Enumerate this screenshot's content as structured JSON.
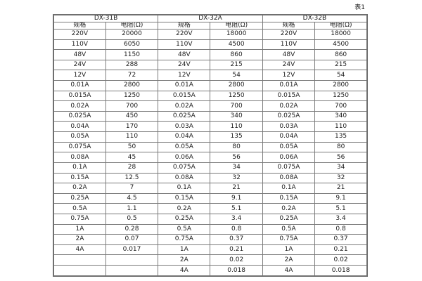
{
  "page": {
    "caption": "表1"
  },
  "colors": {
    "border": "#7a7a7a",
    "outer_border": "#6f6f6f",
    "text": "#1b1b1b",
    "background": "#ffffff"
  },
  "table": {
    "groups": [
      {
        "name": "DX-31B",
        "spec_header": "规格",
        "res_header": "电阻(Ω)"
      },
      {
        "name": "DX-32A",
        "spec_header": "规格",
        "res_header": "电阻(Ω)"
      },
      {
        "name": "DX-32B",
        "spec_header": "规格",
        "res_header": "电阻(Ω)"
      }
    ],
    "rows": [
      [
        "220V",
        "20000",
        "220V",
        "18000",
        "220V",
        "18000"
      ],
      [
        "110V",
        "6050",
        "110V",
        "4500",
        "110V",
        "4500"
      ],
      [
        "48V",
        "1150",
        "48V",
        "860",
        "48V",
        "860"
      ],
      [
        "24V",
        "288",
        "24V",
        "215",
        "24V",
        "215"
      ],
      [
        "12V",
        "72",
        "12V",
        "54",
        "12V",
        "54"
      ],
      [
        "0.01A",
        "2800",
        "0.01A",
        "2800",
        "0.01A",
        "2800"
      ],
      [
        "0.015A",
        "1250",
        "0.015A",
        "1250",
        "0.015A",
        "1250"
      ],
      [
        "0.02A",
        "700",
        "0.02A",
        "700",
        "0.02A",
        "700"
      ],
      [
        "0.025A",
        "450",
        "0.025A",
        "340",
        "0.025A",
        "340"
      ],
      [
        "0.04A",
        "170",
        "0.03A",
        "110",
        "0.03A",
        "110"
      ],
      [
        "0.05A",
        "110",
        "0.04A",
        "135",
        "0.04A",
        "135"
      ],
      [
        "0.075A",
        "50",
        "0.05A",
        "80",
        "0.05A",
        "80"
      ],
      [
        "0.08A",
        "45",
        "0.06A",
        "56",
        "0.06A",
        "56"
      ],
      [
        "0.1A",
        "28",
        "0.075A",
        "34",
        "0.075A",
        "34"
      ],
      [
        "0.15A",
        "12.5",
        "0.08A",
        "32",
        "0.08A",
        "32"
      ],
      [
        "0.2A",
        "7",
        "0.1A",
        "21",
        "0.1A",
        "21"
      ],
      [
        "0.25A",
        "4.5",
        "0.15A",
        "9.1",
        "0.15A",
        "9.1"
      ],
      [
        "0.5A",
        "1.1",
        "0.2A",
        "5.1",
        "0.2A",
        "5.1"
      ],
      [
        "0.75A",
        "0.5",
        "0.25A",
        "3.4",
        "0.25A",
        "3.4"
      ],
      [
        "1A",
        "0.28",
        "0.5A",
        "0.8",
        "0.5A",
        "0.8"
      ],
      [
        "2A",
        "0.07",
        "0.75A",
        "0.37",
        "0.75A",
        "0.37"
      ],
      [
        "4A",
        "0.017",
        "1A",
        "0.21",
        "1A",
        "0.21"
      ],
      [
        "",
        "",
        "2A",
        "0.02",
        "2A",
        "0.02"
      ],
      [
        "",
        "",
        "4A",
        "0.018",
        "4A",
        "0.018"
      ]
    ]
  }
}
